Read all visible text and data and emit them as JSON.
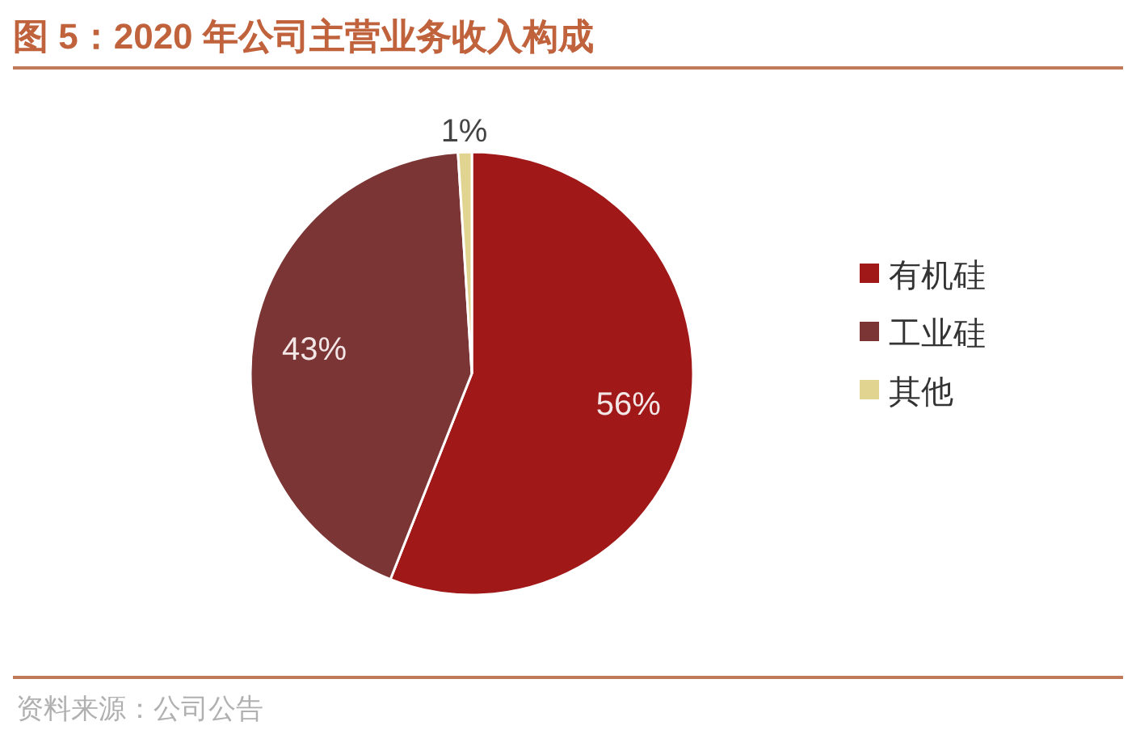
{
  "chart_data": {
    "type": "pie",
    "title": "图 5：2020 年公司主营业务收入构成",
    "categories": [
      "有机硅",
      "工业硅",
      "其他"
    ],
    "values": [
      56,
      43,
      1
    ],
    "colors": [
      "#a01818",
      "#7b3535",
      "#e0d490"
    ],
    "value_labels": [
      "56%",
      "43%",
      "1%"
    ],
    "legend": "right",
    "annotations": [
      "资料来源：公司公告"
    ]
  }
}
